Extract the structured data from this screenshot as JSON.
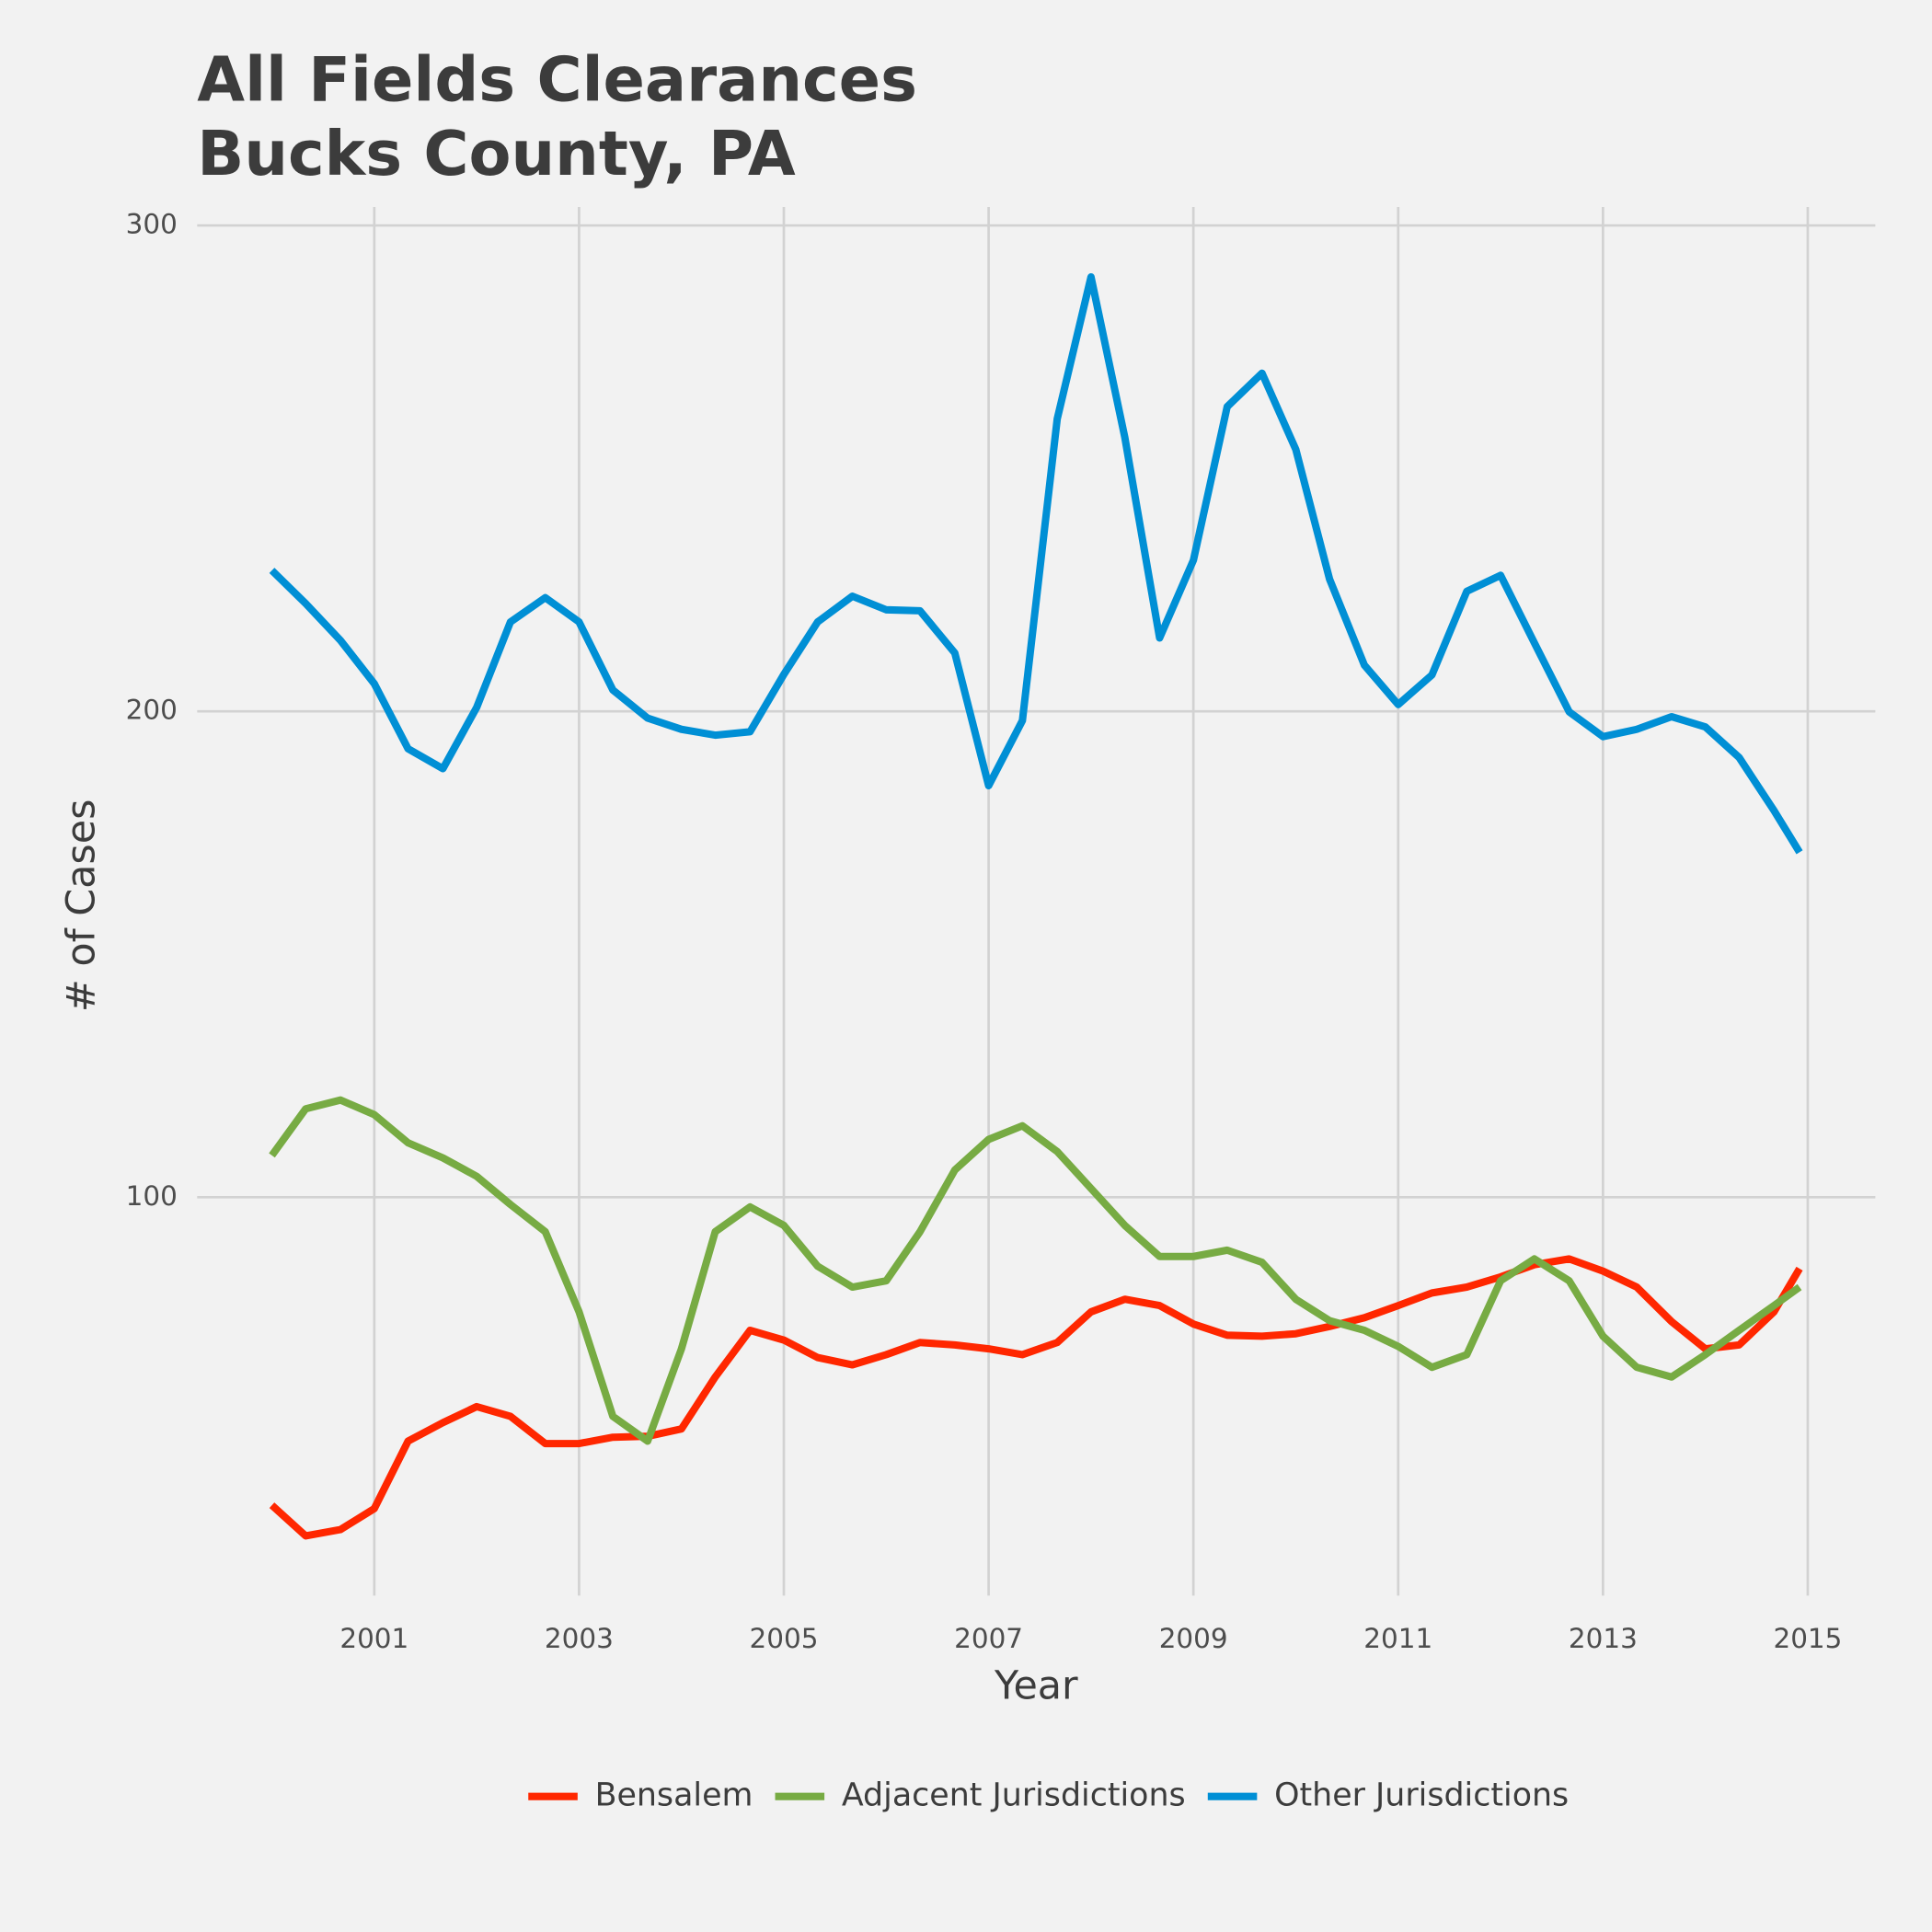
{
  "chart_data": {
    "type": "line",
    "title": [
      "All Fields Clearances",
      "Bucks County, PA"
    ],
    "xlabel": "Year",
    "ylabel": "# of Cases",
    "x": [
      2000,
      2000.33,
      2000.67,
      2001,
      2001.33,
      2001.67,
      2002,
      2002.33,
      2002.67,
      2003,
      2003.33,
      2003.67,
      2004,
      2004.33,
      2004.67,
      2005,
      2005.33,
      2005.67,
      2006,
      2006.33,
      2006.67,
      2007,
      2007.33,
      2007.67,
      2008,
      2008.33,
      2008.67,
      2009,
      2009.33,
      2009.67,
      2010,
      2010.33,
      2010.67,
      2011,
      2011.33,
      2011.67,
      2012,
      2012.33,
      2012.67,
      2013,
      2013.33,
      2013.67,
      2014,
      2014.33,
      2014.67,
      2014.92
    ],
    "series": [
      {
        "name": "Bensalem",
        "color": "#ff2700",
        "values": [
          36.6,
          30.3,
          31.6,
          35.9,
          49.8,
          53.6,
          56.9,
          54.9,
          49.3,
          49.3,
          50.6,
          50.8,
          52.3,
          63.0,
          72.6,
          70.6,
          67.0,
          65.5,
          67.6,
          70.1,
          69.6,
          68.8,
          67.6,
          70.1,
          76.4,
          79.0,
          77.7,
          73.9,
          71.6,
          71.4,
          71.9,
          73.4,
          75.2,
          77.7,
          80.3,
          81.5,
          83.6,
          86.1,
          87.3,
          84.8,
          81.5,
          74.4,
          68.8,
          69.6,
          76.4,
          85.3
        ]
      },
      {
        "name": "Adjacent Jurisdictions",
        "color": "#77ab43",
        "values": [
          108.6,
          118.2,
          120.0,
          117.0,
          111.2,
          108.1,
          104.3,
          98.5,
          92.9,
          76.4,
          54.9,
          49.8,
          68.8,
          92.9,
          98.0,
          94.2,
          85.8,
          81.5,
          82.8,
          92.9,
          105.6,
          111.9,
          114.7,
          109.4,
          101.8,
          94.2,
          87.8,
          87.8,
          89.1,
          86.6,
          79.0,
          74.6,
          72.6,
          69.3,
          65.0,
          67.6,
          82.8,
          87.3,
          82.8,
          71.4,
          65.0,
          63.0,
          67.6,
          72.6,
          77.7,
          81.5
        ]
      },
      {
        "name": "Other Jurisdictions",
        "color": "#008fd5",
        "values": [
          229.0,
          222.2,
          214.6,
          205.7,
          192.3,
          188.2,
          200.8,
          218.4,
          223.4,
          218.4,
          204.4,
          198.6,
          196.3,
          195.1,
          195.8,
          207.6,
          218.4,
          223.7,
          220.9,
          220.7,
          212.0,
          184.7,
          198.1,
          260.2,
          289.4,
          256.4,
          215.1,
          231.1,
          262.7,
          269.6,
          253.9,
          227.2,
          209.5,
          201.4,
          207.5,
          224.7,
          228.0,
          214.1,
          199.9,
          194.8,
          196.3,
          198.9,
          196.8,
          190.5,
          179.6,
          171.0
        ]
      }
    ],
    "xlim": [
      1999.27,
      2015.66
    ],
    "xticks": [
      2001,
      2003,
      2005,
      2007,
      2009,
      2011,
      2013,
      2015
    ],
    "ylim": [
      18,
      300
    ],
    "yticks": [
      100,
      200,
      300
    ],
    "grid": true,
    "legend": "bottom"
  }
}
